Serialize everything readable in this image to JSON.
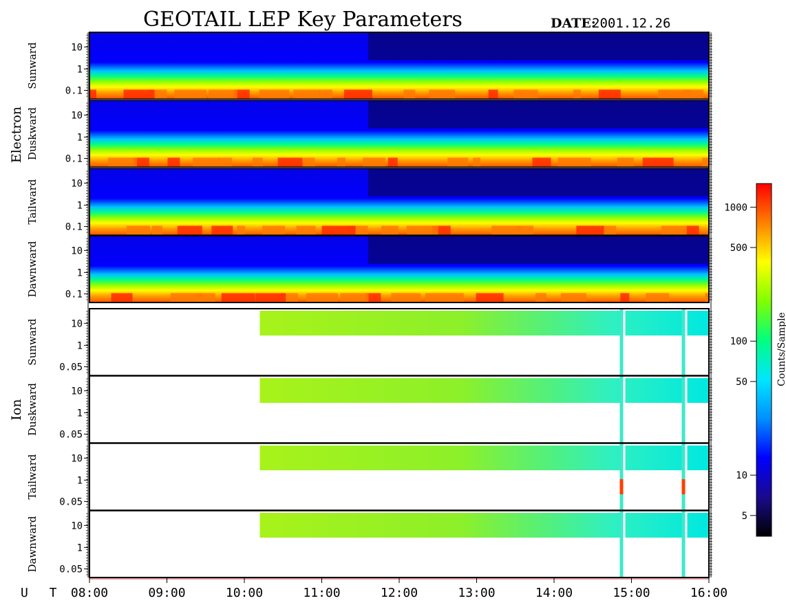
{
  "header": {
    "title": "GEOTAIL LEP Key Parameters",
    "date_label": "DATE:",
    "date_value": "2001.12.26"
  },
  "chart_data": {
    "type": "heatmap",
    "x_axis": {
      "prefix": "U T",
      "range": [
        "08:00",
        "16:00"
      ],
      "ticks": [
        "08:00",
        "09:00",
        "10:00",
        "11:00",
        "12:00",
        "13:00",
        "14:00",
        "15:00",
        "16:00"
      ]
    },
    "groups": [
      {
        "name": "Electron",
        "panels": [
          {
            "label": "Sunward",
            "y_scale": "log",
            "y_ticks": [
              "10",
              "1",
              "0.1"
            ]
          },
          {
            "label": "Duskward",
            "y_scale": "log",
            "y_ticks": [
              "10",
              "1",
              "0.1"
            ]
          },
          {
            "label": "Tailward",
            "y_scale": "log",
            "y_ticks": [
              "10",
              "1",
              "0.1"
            ]
          },
          {
            "label": "Dawnward",
            "y_scale": "log",
            "y_ticks": [
              "10",
              "1",
              "0.1"
            ]
          }
        ]
      },
      {
        "name": "Ion",
        "panels": [
          {
            "label": "Sunward",
            "y_scale": "log",
            "y_ticks": [
              "10",
              "1",
              "0.05"
            ]
          },
          {
            "label": "Duskward",
            "y_scale": "log",
            "y_ticks": [
              "10",
              "1",
              "0.05"
            ]
          },
          {
            "label": "Tailward",
            "y_scale": "log",
            "y_ticks": [
              "10",
              "1",
              "0.05"
            ]
          },
          {
            "label": "Dawnward",
            "y_scale": "log",
            "y_ticks": [
              "10",
              "1",
              "0.05"
            ]
          }
        ],
        "data_start": "10:12",
        "gaps": [
          "14:52",
          "15:40"
        ]
      }
    ],
    "colorbar": {
      "label": "Counts/Sample",
      "scale": "log",
      "range": [
        3.5,
        1500
      ],
      "ticks": [
        "1000",
        "500",
        "100",
        "50",
        "10",
        "5"
      ]
    },
    "colormap": [
      "#000000",
      "#1a0a8c",
      "#0000ff",
      "#0090ff",
      "#00e6ff",
      "#00ff80",
      "#80ff00",
      "#ffff00",
      "#ff8000",
      "#ff0000"
    ]
  }
}
